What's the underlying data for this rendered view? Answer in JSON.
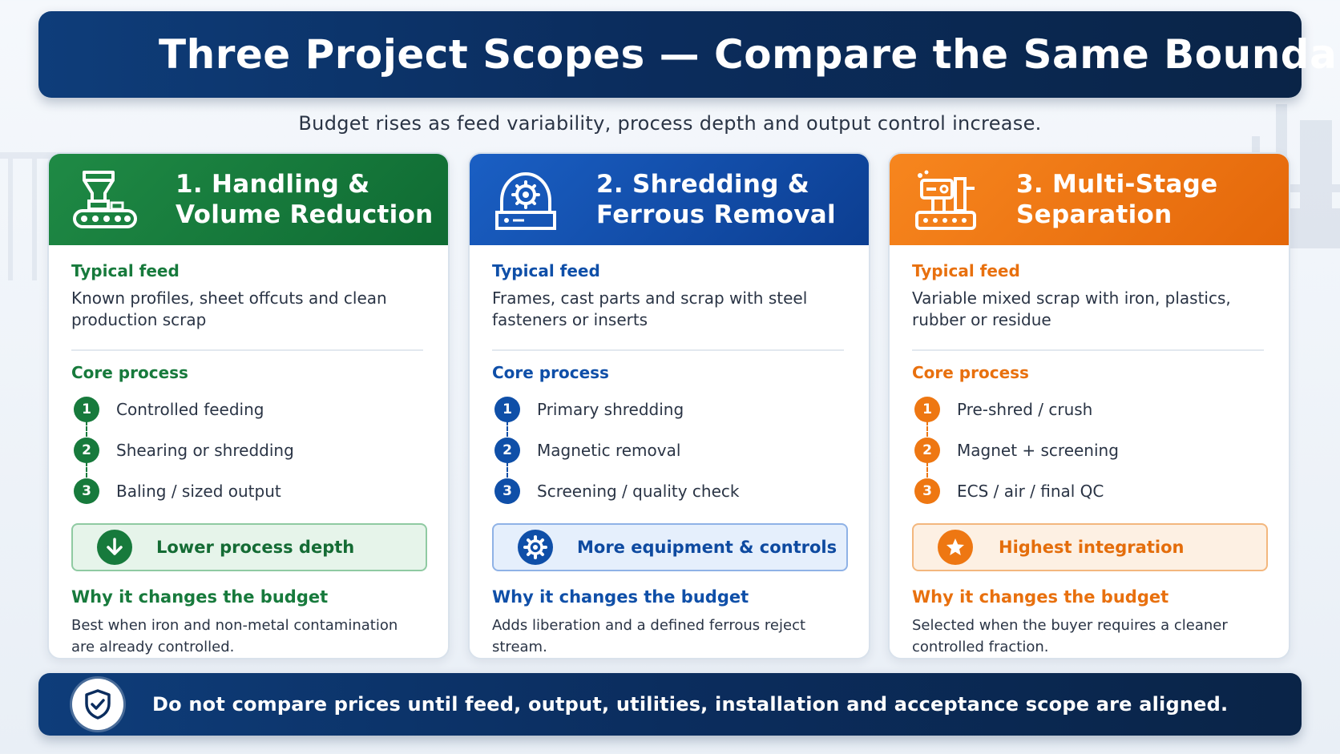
{
  "header": {
    "title": "Three Project Scopes — Compare the Same Boundary",
    "icon": "shield-check-icon"
  },
  "subtitle": "Budget rises as feed variability, process depth and output control increase.",
  "cards": [
    {
      "title_line1": "1. Handling &",
      "title_line2": "Volume Reduction",
      "icon": "conveyor-hopper-icon",
      "color": "#177a3c",
      "feed_label": "Typical feed",
      "feed_text": "Known profiles, sheet offcuts and clean production scrap",
      "core_label": "Core process",
      "steps": [
        {
          "num": "1",
          "text": "Controlled feeding"
        },
        {
          "num": "2",
          "text": "Shearing or shredding"
        },
        {
          "num": "3",
          "text": "Baling / sized output"
        }
      ],
      "badge_text": "Lower process depth",
      "badge_icon": "arrow-down-icon",
      "why_label": "Why it changes the budget",
      "why_text": "Best when iron and non-metal contamination are already controlled."
    },
    {
      "title_line1": "2. Shredding &",
      "title_line2": "Ferrous Removal",
      "icon": "shredder-gear-icon",
      "color": "#0f4fa8",
      "feed_label": "Typical feed",
      "feed_text": "Frames, cast parts and scrap with steel fasteners or inserts",
      "core_label": "Core process",
      "steps": [
        {
          "num": "1",
          "text": "Primary shredding"
        },
        {
          "num": "2",
          "text": "Magnetic removal"
        },
        {
          "num": "3",
          "text": "Screening / quality check"
        }
      ],
      "badge_text": "More equipment & controls",
      "badge_icon": "gear-icon",
      "why_label": "Why it changes the budget",
      "why_text": "Adds liberation and a defined ferrous reject stream."
    },
    {
      "title_line1": "3. Multi-Stage",
      "title_line2": "Separation",
      "icon": "separation-line-icon",
      "color": "#ee7712",
      "feed_label": "Typical feed",
      "feed_text": "Variable mixed scrap with iron, plastics, rubber or residue",
      "core_label": "Core process",
      "steps": [
        {
          "num": "1",
          "text": "Pre-shred / crush"
        },
        {
          "num": "2",
          "text": "Magnet + screening"
        },
        {
          "num": "3",
          "text": "ECS / air / final QC"
        }
      ],
      "badge_text": "Highest integration",
      "badge_icon": "star-icon",
      "why_label": "Why it changes the budget",
      "why_text": "Selected when the buyer requires a cleaner controlled fraction."
    }
  ],
  "footer": {
    "text": "Do not compare prices until feed, output, utilities, installation and acceptance scope are aligned.",
    "icon": "shield-check-icon"
  }
}
